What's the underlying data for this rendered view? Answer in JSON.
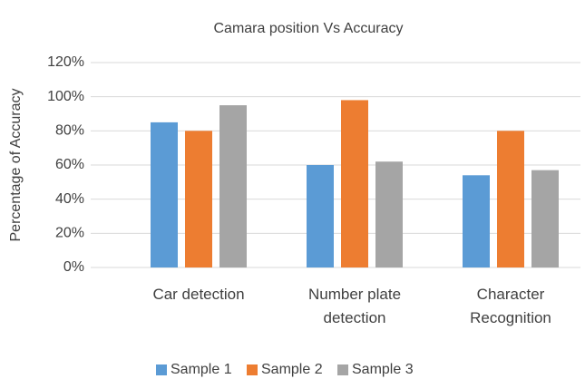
{
  "chart_data": {
    "type": "bar",
    "title": "Camara position Vs Accuracy",
    "y_label": "Percentage of Accuracy",
    "categories": [
      "Car detection",
      "Number plate detection",
      "Character Recognition"
    ],
    "series": [
      {
        "name": "Sample 1",
        "color": "#5b9bd5",
        "values": [
          85,
          60,
          54
        ]
      },
      {
        "name": "Sample 2",
        "color": "#ed7d31",
        "values": [
          80,
          98,
          80
        ]
      },
      {
        "name": "Sample 3",
        "color": "#a5a5a5",
        "values": [
          95,
          62,
          57
        ]
      }
    ],
    "ylim": [
      0,
      120
    ],
    "yticks": [
      {
        "value": 0,
        "label": "0%"
      },
      {
        "value": 20,
        "label": "20%"
      },
      {
        "value": 40,
        "label": "40%"
      },
      {
        "value": 60,
        "label": "60%"
      },
      {
        "value": 80,
        "label": "80%"
      },
      {
        "value": 100,
        "label": "100%"
      },
      {
        "value": 120,
        "label": "120%"
      }
    ],
    "grid": true,
    "legend": "bottom"
  }
}
